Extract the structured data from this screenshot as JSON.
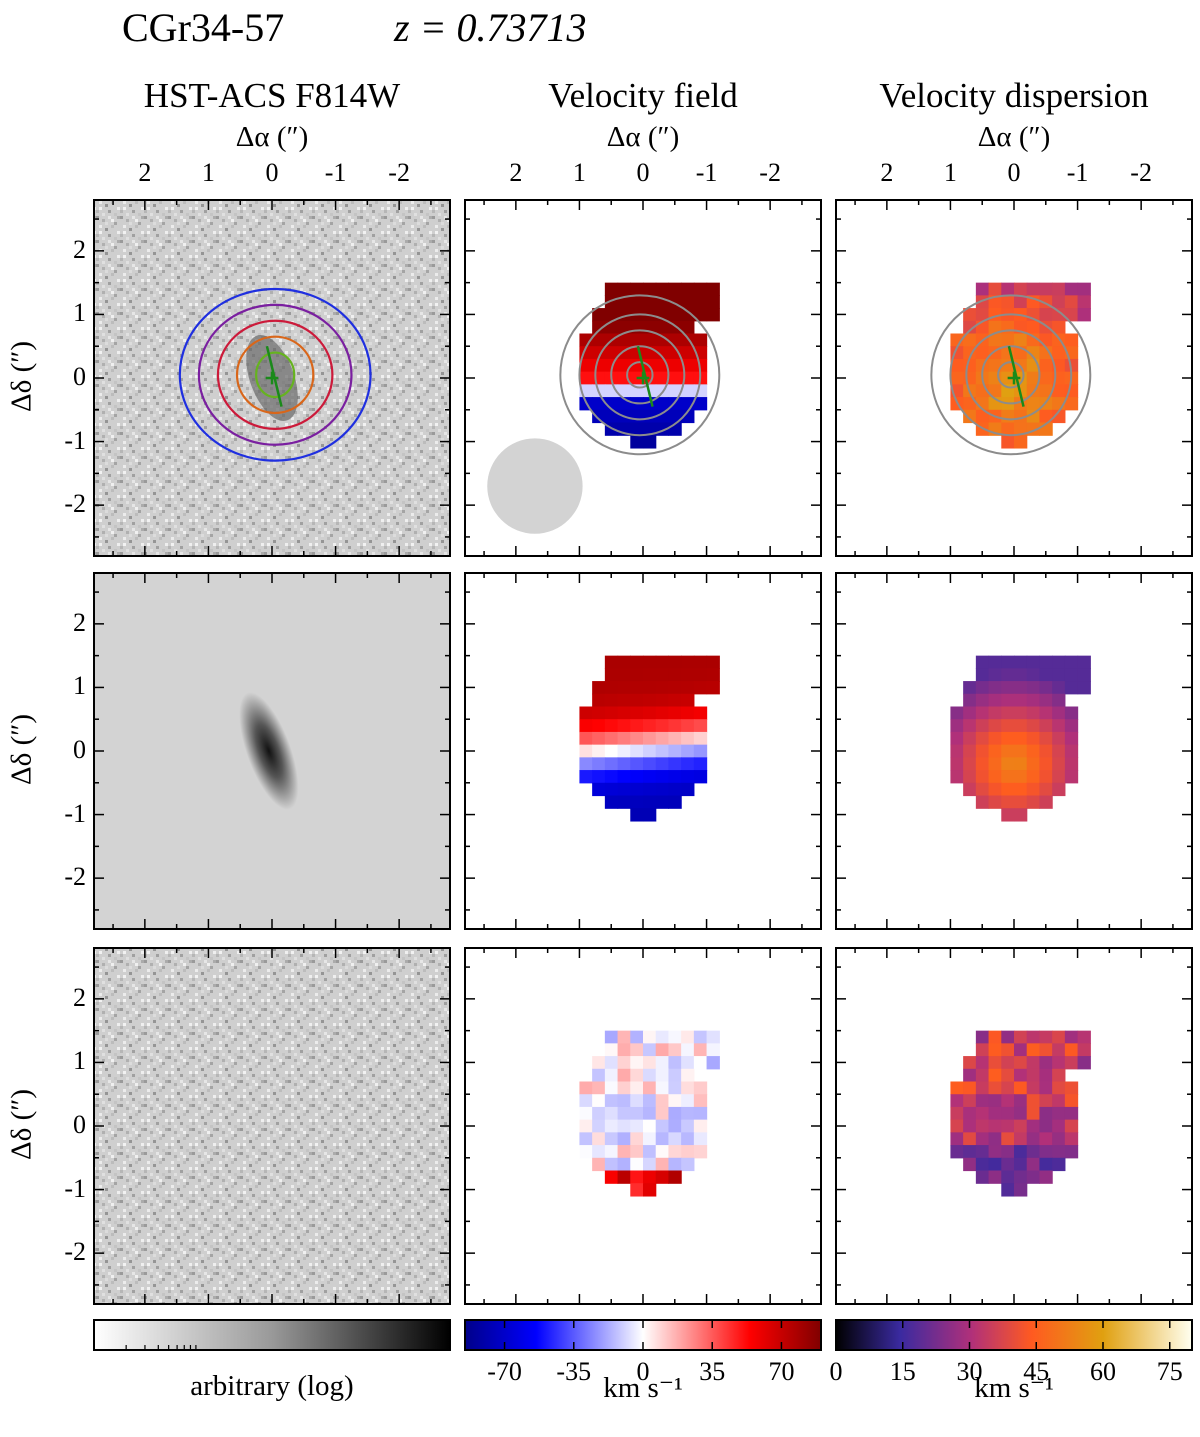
{
  "header": {
    "object": "CGr34-57",
    "redshift": "z = 0.73713"
  },
  "columns": [
    {
      "title": "HST-ACS F814W",
      "axis_label": "Δα (″)"
    },
    {
      "title": "Velocity field",
      "axis_label": "Δα (″)"
    },
    {
      "title": "Velocity dispersion",
      "axis_label": "Δα (″)"
    }
  ],
  "y_axis_label": "Δδ (″)",
  "colorbars": [
    {
      "label": "arbitrary (log)",
      "ticks": []
    },
    {
      "label": "km s⁻¹",
      "ticks": [
        "-70",
        "-35",
        "0",
        "35",
        "70"
      ]
    },
    {
      "label": "km s⁻¹",
      "ticks": [
        "0",
        "15",
        "30",
        "45",
        "60",
        "75"
      ]
    }
  ],
  "colors": {
    "contour_1": "#1f2fe0",
    "contour_2": "#7a1fa0",
    "contour_3": "#cc1a3a",
    "contour_4": "#d9661a",
    "contour_5": "#66b31f",
    "major_axis": "#1a8a1a",
    "grey_contour": "#8c8c8c",
    "beam": "#d3d3d3"
  },
  "chart_data": {
    "type": "heatmap",
    "layout_desc": "3x3 grid of maps: rows = observed, model, residual; columns = HST image, velocity field, velocity dispersion",
    "x_ticks": [
      "2",
      "1",
      "0",
      "-1",
      "-2"
    ],
    "y_ticks": [
      "2",
      "1",
      "0",
      "-1",
      "-2"
    ],
    "xlim": [
      2.8,
      -2.8
    ],
    "ylim": [
      -2.8,
      2.8
    ],
    "velocity_range_kms": [
      -90,
      90
    ],
    "dispersion_range_kms": [
      0,
      80
    ],
    "beam_fwhm_arcsec": 1.5,
    "beam_center_arcsec": [
      1.7,
      -1.7
    ],
    "position_angle_line": [
      [
        0.08,
        0.5
      ],
      [
        -0.15,
        -0.45
      ]
    ],
    "center_arcsec": [
      0,
      0
    ]
  }
}
